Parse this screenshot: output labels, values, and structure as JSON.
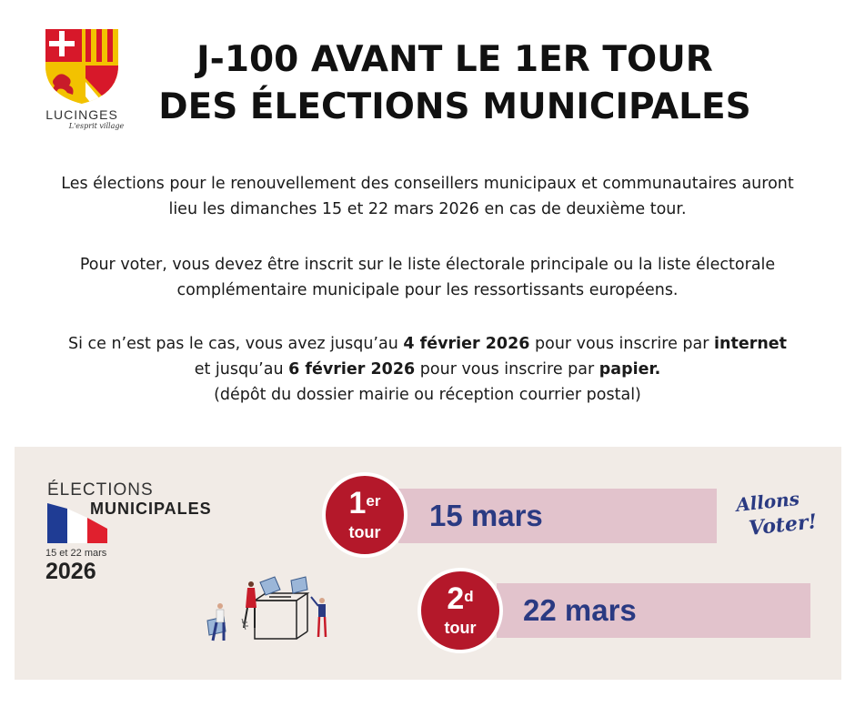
{
  "logo": {
    "town": "LUCINGES",
    "motto": "L'esprit village"
  },
  "title": {
    "line1": "J-100 AVANT LE 1ER TOUR",
    "line2": "DES ÉLECTIONS MUNICIPALES"
  },
  "paragraphs": {
    "p1_line1": "Les élections pour le renouvellement des conseillers municipaux et communautaires auront",
    "p1_line2": "lieu les dimanches 15 et 22 mars 2026 en cas de deuxième tour.",
    "p2_line1": "Pour voter, vous devez être inscrit sur le liste électorale principale ou la liste électorale",
    "p2_line2": "complémentaire municipale pour les ressortissants européens.",
    "p3_a": "Si ce n’est pas le cas, vous avez jusqu’au ",
    "p3_b": "4 février 2026",
    "p3_c": " pour vous inscrire par ",
    "p3_d": "internet",
    "p3_e": "et jusqu’au ",
    "p3_f": "6 février 2026",
    "p3_g": " pour vous inscrire par ",
    "p3_h": "papier.",
    "p3_line3": "(dépôt du dossier mairie ou réception courrier postal)"
  },
  "banner": {
    "elections_label": "ÉLECTIONS",
    "municipales_label": "MUNICIPALES",
    "dates_label": "15 et 22 mars",
    "year_label": "2026",
    "round1": {
      "number": "1",
      "suffix": "er",
      "tour": "tour",
      "date": "15 mars"
    },
    "round2": {
      "number": "2",
      "suffix": "d",
      "tour": "tour",
      "date": "22 mars"
    },
    "slogan_line1": "Allons",
    "slogan_line2": "Voter!"
  },
  "colors": {
    "banner_bg": "#f1ebe6",
    "circle_red": "#b4182a",
    "bar_pink": "#e2c3cc",
    "date_blue": "#2a3a82"
  }
}
